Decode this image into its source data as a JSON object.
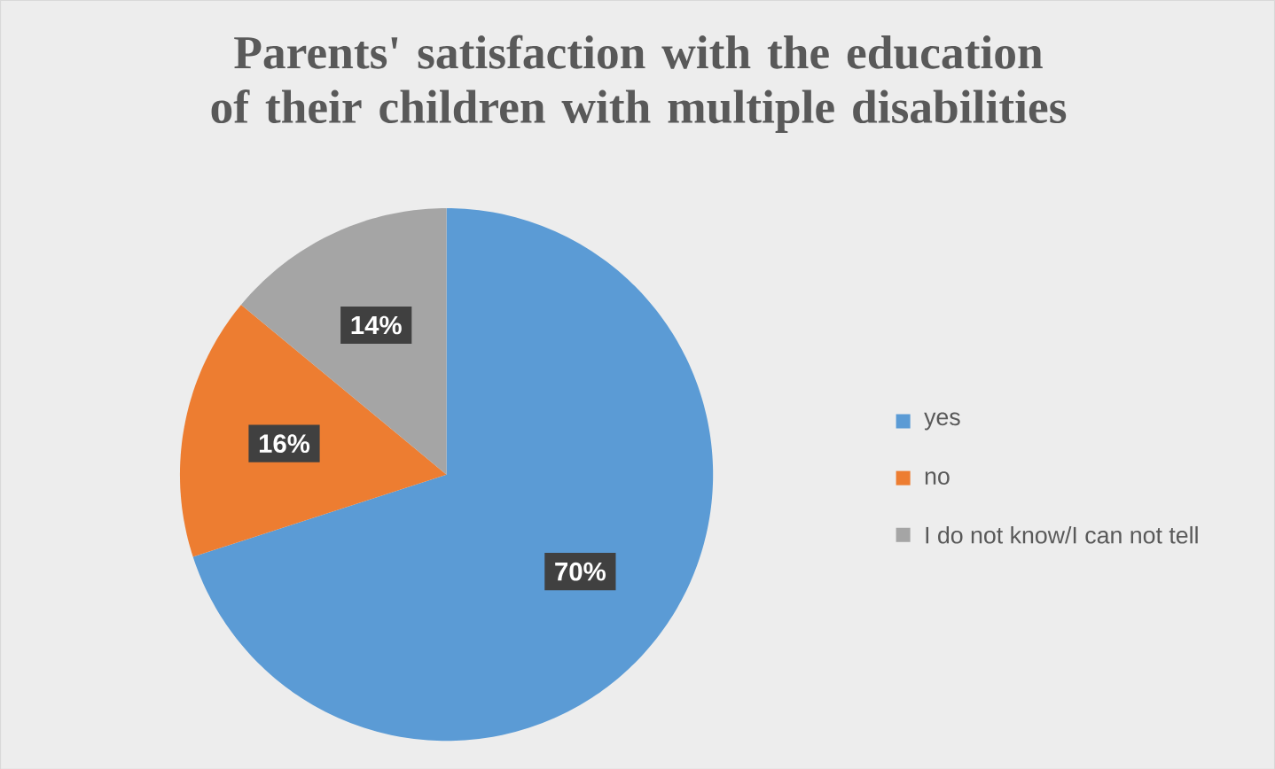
{
  "chart_data": {
    "type": "pie",
    "title": "Parents' satisfaction with the education of their children with multiple disabilities",
    "categories": [
      "yes",
      "no",
      "I do not know/I can not tell"
    ],
    "values": [
      70,
      16,
      14
    ],
    "colors": [
      "#5b9bd5",
      "#ed7d31",
      "#a5a5a5"
    ],
    "value_labels": [
      "70%",
      "16%",
      "14%"
    ],
    "legend": "right"
  }
}
